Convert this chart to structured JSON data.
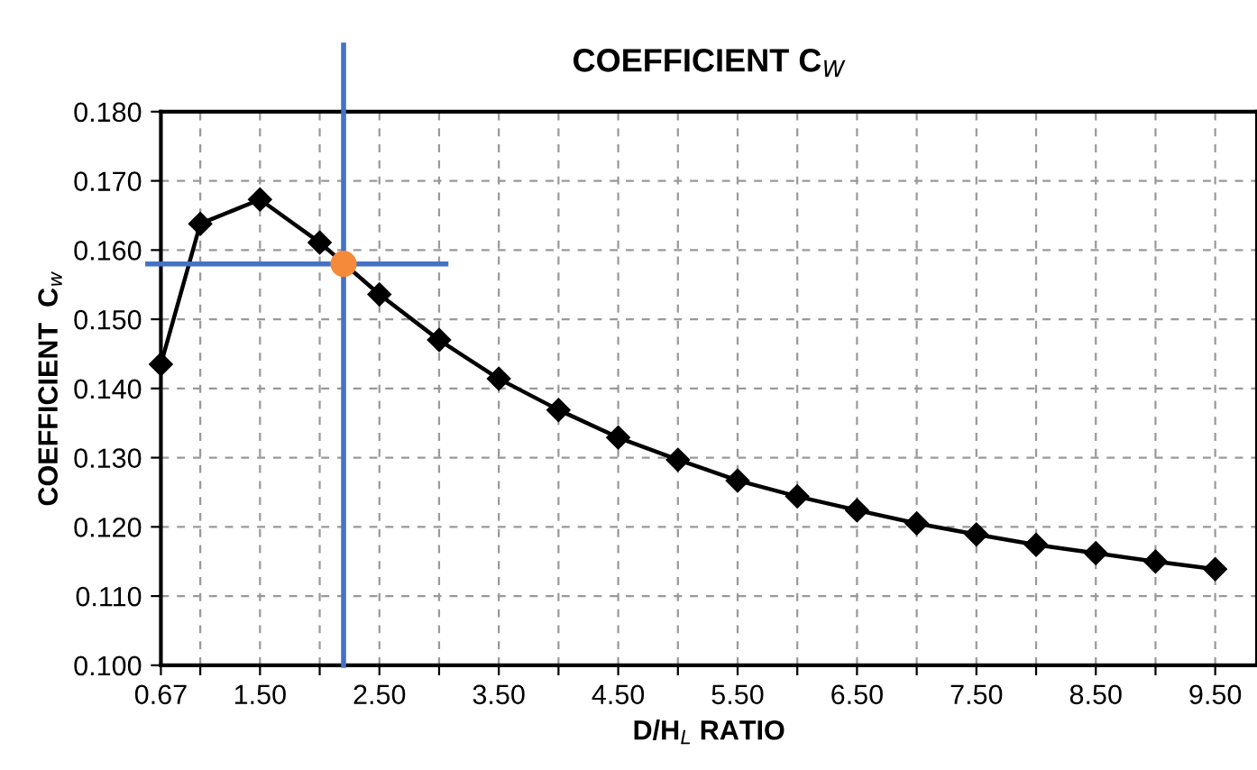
{
  "chart_data": {
    "type": "line",
    "title": "COEFFICIENT C$_{W}$",
    "xlabel": "D/H$_{L}$ RATIO",
    "ylabel": "COEFFICIENT  C$_{w}$",
    "series": [
      {
        "color": "#000000",
        "marker": "diamond",
        "x": [
          0.67,
          1.0,
          1.5,
          2.0,
          2.5,
          3.0,
          3.5,
          4.0,
          4.5,
          5.0,
          5.5,
          6.0,
          6.5,
          7.0,
          7.5,
          8.0,
          8.5,
          9.0,
          9.5
        ],
        "values": [
          0.1435,
          0.1638,
          0.1673,
          0.1611,
          0.1536,
          0.147,
          0.1414,
          0.1369,
          0.1329,
          0.1297,
          0.1267,
          0.1244,
          0.1224,
          0.1205,
          0.1189,
          0.1174,
          0.1162,
          0.115,
          0.1139
        ]
      },
      {
        "type": "scatter",
        "color": "#f58a3a",
        "marker": "circle",
        "x": [
          2.2
        ],
        "values": [
          0.158
        ]
      }
    ],
    "ref_lines": [
      {
        "axis": "x",
        "value": 2.2,
        "color": "#4472c4"
      },
      {
        "axis": "y",
        "value": 0.158,
        "color": "#4472c4"
      }
    ],
    "xlim": [
      0.67,
      9.85
    ],
    "ylim": [
      0.1,
      0.18
    ],
    "xticks": [
      0.67,
      {
        "value": 1.0,
        "label": null
      },
      {
        "value": 1.5,
        "label": "1.50"
      },
      {
        "value": 2.0,
        "label": null
      },
      {
        "value": 2.5,
        "label": "2.50"
      },
      {
        "value": 3.0,
        "label": null
      },
      {
        "value": 3.5,
        "label": "3.50"
      },
      {
        "value": 4.0,
        "label": null
      },
      {
        "value": 4.5,
        "label": "4.50"
      },
      {
        "value": 5.0,
        "label": null
      },
      {
        "value": 5.5,
        "label": "5.50"
      },
      {
        "value": 6.0,
        "label": null
      },
      {
        "value": 6.5,
        "label": "6.50"
      },
      {
        "value": 7.0,
        "label": null
      },
      {
        "value": 7.5,
        "label": "7.50"
      },
      {
        "value": 8.0,
        "label": null
      },
      {
        "value": 8.5,
        "label": "8.50"
      },
      {
        "value": 9.0,
        "label": null
      },
      {
        "value": 9.5,
        "label": "9.50"
      }
    ],
    "yticks": [
      {
        "value": 0.1,
        "label": "0.100"
      },
      {
        "value": 0.11,
        "label": "0.110"
      },
      {
        "value": 0.12,
        "label": "0.120"
      },
      {
        "value": 0.13,
        "label": "0.130"
      },
      {
        "value": 0.14,
        "label": "0.140"
      },
      {
        "value": 0.15,
        "label": "0.150"
      },
      {
        "value": 0.16,
        "label": "0.160"
      },
      {
        "value": 0.17,
        "label": "0.170"
      },
      {
        "value": 0.18,
        "label": "0.180"
      }
    ],
    "grid": true,
    "line_style": "solid",
    "legend": false
  }
}
